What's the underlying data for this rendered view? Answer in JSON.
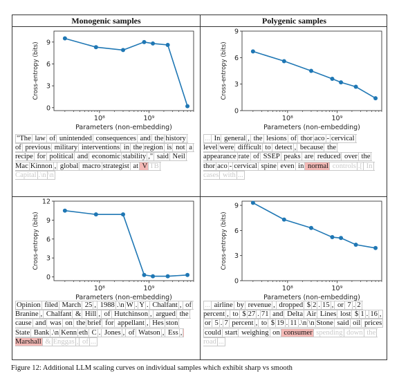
{
  "columns": [
    "Monogenic samples",
    "Polygenic samples"
  ],
  "chart_data": [
    {
      "type": "line",
      "panel": "top-left",
      "xlabel": "Parameters (non-embedding)",
      "ylabel": "Cross-entropy (bits)",
      "xscale": "log",
      "xlim": [
        12000000.0,
        8000000000.0
      ],
      "ylim": [
        -0.4,
        10.5
      ],
      "yticks": [
        0,
        3,
        6,
        9
      ],
      "xticks": [
        {
          "v": 100000000.0,
          "label": "10⁸"
        },
        {
          "v": 1000000000.0,
          "label": "10⁹"
        }
      ],
      "x": [
        20000000.0,
        85000000.0,
        300000000.0,
        800000000.0,
        1200000000.0,
        2400000000.0,
        6000000000.0
      ],
      "y": [
        9.5,
        8.3,
        7.9,
        9.0,
        8.8,
        8.6,
        0.2
      ]
    },
    {
      "type": "line",
      "panel": "top-right",
      "xlabel": "Parameters (non-embedding)",
      "ylabel": "Cross-entropy (bits)",
      "xscale": "log",
      "xlim": [
        12000000.0,
        8000000000.0
      ],
      "ylim": [
        0,
        9
      ],
      "yticks": [
        0,
        3,
        6,
        9
      ],
      "xticks": [
        {
          "v": 100000000.0,
          "label": "10⁸"
        },
        {
          "v": 1000000000.0,
          "label": "10⁹"
        }
      ],
      "x": [
        20000000.0,
        85000000.0,
        300000000.0,
        800000000.0,
        1200000000.0,
        2400000000.0,
        6000000000.0
      ],
      "y": [
        6.7,
        5.6,
        4.5,
        3.6,
        3.2,
        2.7,
        1.4
      ]
    },
    {
      "type": "line",
      "panel": "bottom-left",
      "xlabel": "Parameters (non-embedding)",
      "ylabel": "Cross-entropy (bits)",
      "xscale": "log",
      "xlim": [
        12000000.0,
        8000000000.0
      ],
      "ylim": [
        -0.6,
        12
      ],
      "yticks": [
        0,
        3,
        6,
        9,
        12
      ],
      "xticks": [
        {
          "v": 100000000.0,
          "label": "10⁸"
        },
        {
          "v": 1000000000.0,
          "label": "10⁹"
        }
      ],
      "x": [
        20000000.0,
        85000000.0,
        300000000.0,
        800000000.0,
        1200000000.0,
        2400000000.0,
        6000000000.0
      ],
      "y": [
        10.5,
        9.9,
        9.9,
        0.3,
        0.1,
        0.1,
        0.3
      ]
    },
    {
      "type": "line",
      "panel": "bottom-right",
      "xlabel": "Parameters (non-embedding)",
      "ylabel": "Cross-entropy (bits)",
      "xscale": "log",
      "xlim": [
        12000000.0,
        8000000000.0
      ],
      "ylim": [
        0,
        9.5
      ],
      "yticks": [
        0,
        3,
        6,
        9
      ],
      "xticks": [
        {
          "v": 100000000.0,
          "label": "10⁸"
        },
        {
          "v": 1000000000.0,
          "label": "10⁹"
        }
      ],
      "x": [
        20000000.0,
        85000000.0,
        300000000.0,
        800000000.0,
        1200000000.0,
        2400000000.0,
        6000000000.0
      ],
      "y": [
        9.3,
        7.3,
        6.3,
        5.2,
        5.1,
        4.3,
        3.9
      ]
    }
  ],
  "samples": [
    {
      "panel": "top-left",
      "tokens": [
        {
          "t": "\"The",
          "k": "n"
        },
        {
          "t": " law",
          "k": "n"
        },
        {
          "t": " of",
          "k": "n"
        },
        {
          "t": " unintended",
          "k": "n"
        },
        {
          "t": " consequences",
          "k": "n"
        },
        {
          "t": " and",
          "k": "n"
        },
        {
          "t": " the",
          "k": "n"
        },
        {
          "t": "history",
          "k": "n"
        },
        {
          "t": " of",
          "k": "n"
        },
        {
          "t": " previous",
          "k": "n"
        },
        {
          "t": " military",
          "k": "n"
        },
        {
          "t": " interventions",
          "k": "n"
        },
        {
          "t": " in",
          "k": "n"
        },
        {
          "t": " the",
          "k": "n"
        },
        {
          "t": "region",
          "k": "n"
        },
        {
          "t": " is",
          "k": "n"
        },
        {
          "t": " not",
          "k": "n"
        },
        {
          "t": " a",
          "k": "n"
        },
        {
          "t": " recipe",
          "k": "n"
        },
        {
          "t": " for",
          "k": "n"
        },
        {
          "t": " political",
          "k": "n"
        },
        {
          "t": " and",
          "k": "n"
        },
        {
          "t": " economic",
          "k": "n"
        },
        {
          "t": "stability",
          "k": "n"
        },
        {
          "t": ",\"",
          "k": "n"
        },
        {
          "t": " said",
          "k": "n"
        },
        {
          "t": " Neil",
          "k": "n"
        },
        {
          "t": " Mac",
          "k": "n"
        },
        {
          "t": "Kinnon",
          "k": "n"
        },
        {
          "t": ",",
          "k": "n"
        },
        {
          "t": " global",
          "k": "n"
        },
        {
          "t": " macro",
          "k": "n"
        },
        {
          "t": "strategist",
          "k": "n"
        },
        {
          "t": " at",
          "k": "n"
        },
        {
          "t": " V",
          "k": "t"
        },
        {
          "t": "TB",
          "k": "c"
        },
        {
          "t": " Capital",
          "k": "c"
        },
        {
          "t": ".\\n",
          "k": "c"
        },
        {
          "t": "\\n",
          "k": "c"
        }
      ]
    },
    {
      "panel": "top-right",
      "tokens": [
        {
          "t": "...",
          "k": "c"
        },
        {
          "t": " In",
          "k": "n"
        },
        {
          "t": " general",
          "k": "n"
        },
        {
          "t": ",",
          "k": "n"
        },
        {
          "t": " the",
          "k": "n"
        },
        {
          "t": " lesions",
          "k": "n"
        },
        {
          "t": " of",
          "k": "n"
        },
        {
          "t": " thor",
          "k": "n"
        },
        {
          "t": "aco",
          "k": "n"
        },
        {
          "t": "-",
          "k": "n"
        },
        {
          "t": "cervical",
          "k": "n"
        },
        {
          "t": " level",
          "k": "n"
        },
        {
          "t": "were",
          "k": "n"
        },
        {
          "t": " difficult",
          "k": "n"
        },
        {
          "t": " to",
          "k": "n"
        },
        {
          "t": " detect",
          "k": "n"
        },
        {
          "t": ",",
          "k": "n"
        },
        {
          "t": " because",
          "k": "n"
        },
        {
          "t": " the",
          "k": "n"
        },
        {
          "t": " appearance",
          "k": "n"
        },
        {
          "t": "rate",
          "k": "n"
        },
        {
          "t": " of",
          "k": "n"
        },
        {
          "t": " SSEP",
          "k": "n"
        },
        {
          "t": " peaks",
          "k": "n"
        },
        {
          "t": " are",
          "k": "n"
        },
        {
          "t": " reduced",
          "k": "n"
        },
        {
          "t": " over",
          "k": "n"
        },
        {
          "t": " the",
          "k": "n"
        },
        {
          "t": " thor",
          "k": "n"
        },
        {
          "t": "aco",
          "k": "n"
        },
        {
          "t": "-",
          "k": "n"
        },
        {
          "t": "cervical",
          "k": "n"
        },
        {
          "t": " spine",
          "k": "n"
        },
        {
          "t": " even",
          "k": "n"
        },
        {
          "t": " in",
          "k": "n"
        },
        {
          "t": " normal",
          "k": "t"
        },
        {
          "t": " controls",
          "k": "c"
        },
        {
          "t": ".[",
          "k": "c"
        },
        {
          "t": " In",
          "k": "c"
        },
        {
          "t": " cases",
          "k": "c"
        },
        {
          "t": " with",
          "k": "c"
        },
        {
          "t": "...",
          "k": "c"
        }
      ]
    },
    {
      "panel": "bottom-left",
      "tokens": [
        {
          "t": "Opinion",
          "k": "n"
        },
        {
          "t": " filed",
          "k": "n"
        },
        {
          "t": " March",
          "k": "n"
        },
        {
          "t": " 25",
          "k": "n"
        },
        {
          "t": ",",
          "k": "n"
        },
        {
          "t": " 1988",
          "k": "n"
        },
        {
          "t": ".\\n",
          "k": "n"
        },
        {
          "t": "W",
          "k": "n"
        },
        {
          "t": ".",
          "k": "n"
        },
        {
          "t": "Y",
          "k": "n"
        },
        {
          "t": ".",
          "k": "n"
        },
        {
          "t": " Chalfant",
          "k": "n"
        },
        {
          "t": ",",
          "k": "n"
        },
        {
          "t": " of",
          "k": "n"
        },
        {
          "t": " Branine",
          "k": "n"
        },
        {
          "t": ",",
          "k": "n"
        },
        {
          "t": " Chalfant",
          "k": "n"
        },
        {
          "t": " &",
          "k": "n"
        },
        {
          "t": " Hill",
          "k": "n"
        },
        {
          "t": ",",
          "k": "n"
        },
        {
          "t": " of",
          "k": "n"
        },
        {
          "t": " Hutchinson",
          "k": "n"
        },
        {
          "t": ",",
          "k": "n"
        },
        {
          "t": " argued",
          "k": "n"
        },
        {
          "t": " the",
          "k": "n"
        },
        {
          "t": " cause",
          "k": "n"
        },
        {
          "t": " and",
          "k": "n"
        },
        {
          "t": " was",
          "k": "n"
        },
        {
          "t": " on",
          "k": "n"
        },
        {
          "t": " the",
          "k": "n"
        },
        {
          "t": "brief",
          "k": "n"
        },
        {
          "t": " for",
          "k": "n"
        },
        {
          "t": " appellant",
          "k": "n"
        },
        {
          "t": ",",
          "k": "n"
        },
        {
          "t": " Hes",
          "k": "n"
        },
        {
          "t": "ston",
          "k": "n"
        },
        {
          "t": " State",
          "k": "n"
        },
        {
          "t": " Bank",
          "k": "n"
        },
        {
          "t": ".\\n",
          "k": "n"
        },
        {
          "t": "Kenn",
          "k": "n"
        },
        {
          "t": "eth",
          "k": "n"
        },
        {
          "t": " C",
          "k": "n"
        },
        {
          "t": ".",
          "k": "n"
        },
        {
          "t": " Jones",
          "k": "n"
        },
        {
          "t": ",",
          "k": "n"
        },
        {
          "t": " of",
          "k": "n"
        },
        {
          "t": " Watson",
          "k": "n"
        },
        {
          "t": ",",
          "k": "n"
        },
        {
          "t": " Ess",
          "k": "n"
        },
        {
          "t": ",",
          "k": "n"
        },
        {
          "t": " Marshall",
          "k": "t"
        },
        {
          "t": " &",
          "k": "c"
        },
        {
          "t": "Enggas",
          "k": "c"
        },
        {
          "t": ",",
          "k": "c"
        },
        {
          "t": " of",
          "k": "c"
        },
        {
          "t": "...",
          "k": "c"
        }
      ]
    },
    {
      "panel": "bottom-right",
      "tokens": [
        {
          "t": "...",
          "k": "c"
        },
        {
          "t": " airline",
          "k": "n"
        },
        {
          "t": " by",
          "k": "n"
        },
        {
          "t": " revenue",
          "k": "n"
        },
        {
          "t": ",",
          "k": "n"
        },
        {
          "t": " dropped",
          "k": "n"
        },
        {
          "t": " $",
          "k": "n"
        },
        {
          "t": "2",
          "k": "n"
        },
        {
          "t": ".",
          "k": "n"
        },
        {
          "t": "15",
          "k": "n"
        },
        {
          "t": ",",
          "k": "n"
        },
        {
          "t": " or",
          "k": "n"
        },
        {
          "t": " 7",
          "k": "n"
        },
        {
          "t": ".",
          "k": "n"
        },
        {
          "t": "2",
          "k": "n"
        },
        {
          "t": " percent",
          "k": "n"
        },
        {
          "t": ",",
          "k": "n"
        },
        {
          "t": " to",
          "k": "n"
        },
        {
          "t": " $",
          "k": "n"
        },
        {
          "t": "27",
          "k": "n"
        },
        {
          "t": ".",
          "k": "n"
        },
        {
          "t": "71",
          "k": "n"
        },
        {
          "t": " and",
          "k": "n"
        },
        {
          "t": " Delta",
          "k": "n"
        },
        {
          "t": " Air",
          "k": "n"
        },
        {
          "t": " Lines",
          "k": "n"
        },
        {
          "t": " lost",
          "k": "n"
        },
        {
          "t": " $",
          "k": "n"
        },
        {
          "t": "1",
          "k": "n"
        },
        {
          "t": ".",
          "k": "n"
        },
        {
          "t": "16",
          "k": "n"
        },
        {
          "t": ",",
          "k": "n"
        },
        {
          "t": " or",
          "k": "n"
        },
        {
          "t": " 5",
          "k": "n"
        },
        {
          "t": ".",
          "k": "n"
        },
        {
          "t": "7",
          "k": "n"
        },
        {
          "t": " percent",
          "k": "n"
        },
        {
          "t": ",",
          "k": "n"
        },
        {
          "t": " to",
          "k": "n"
        },
        {
          "t": " $",
          "k": "n"
        },
        {
          "t": "19",
          "k": "n"
        },
        {
          "t": ".",
          "k": "n"
        },
        {
          "t": "11",
          "k": "n"
        },
        {
          "t": ".\\n",
          "k": "n"
        },
        {
          "t": "\\n",
          "k": "n"
        },
        {
          "t": "Stone",
          "k": "n"
        },
        {
          "t": " said",
          "k": "n"
        },
        {
          "t": " oil",
          "k": "n"
        },
        {
          "t": " prices",
          "k": "n"
        },
        {
          "t": " could",
          "k": "n"
        },
        {
          "t": " start",
          "k": "n"
        },
        {
          "t": " weighing",
          "k": "n"
        },
        {
          "t": " on",
          "k": "n"
        },
        {
          "t": " consumer",
          "k": "t"
        },
        {
          "t": " spending",
          "k": "c"
        },
        {
          "t": " down",
          "k": "c"
        },
        {
          "t": " the",
          "k": "c"
        },
        {
          "t": " road",
          "k": "c"
        },
        {
          "t": "...",
          "k": "c"
        }
      ]
    }
  ],
  "caption": "Figure 12: Additional LLM scaling curves on individual samples which exhibit sharp vs smooth",
  "colors": {
    "line": "#1f77b4",
    "target_bg": "#f4b9b6",
    "context_text": "#c9c9c9",
    "token_border": "#c8c8c8"
  }
}
